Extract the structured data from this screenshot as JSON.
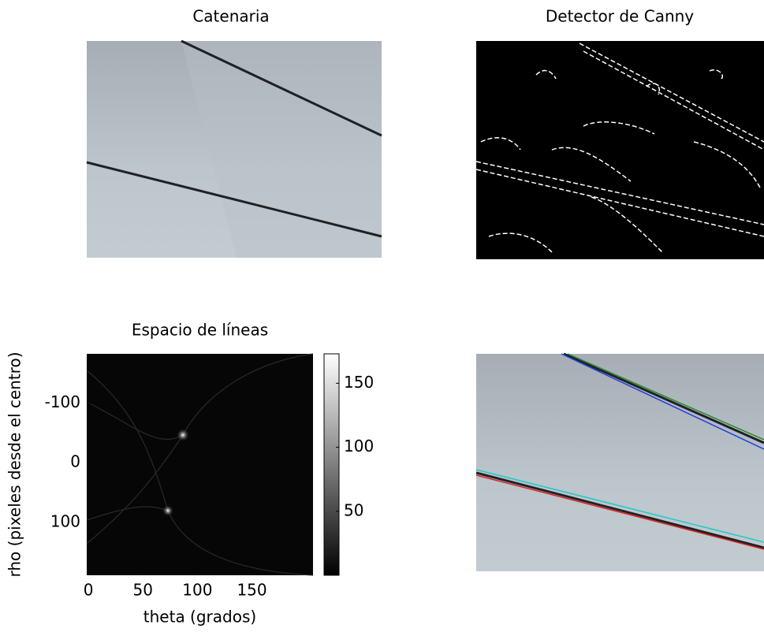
{
  "chart_data": [
    {
      "type": "image",
      "title": "Catenaria"
    },
    {
      "type": "image",
      "title": "Detector de Canny"
    },
    {
      "type": "heatmap",
      "title": "Espacio de líneas",
      "x_label": "theta (grados)",
      "y_label": "rho (pixeles desde el centro)",
      "xlim": [
        -1.5,
        206
      ],
      "xticks": [
        0,
        50,
        100,
        150
      ],
      "ylim": [
        -183,
        189
      ],
      "yticks": [
        -100,
        0,
        100
      ],
      "colorbar": {
        "lim": [
          0,
          173
        ],
        "ticks": [
          50,
          100,
          150
        ]
      }
    },
    {
      "type": "image"
    }
  ]
}
